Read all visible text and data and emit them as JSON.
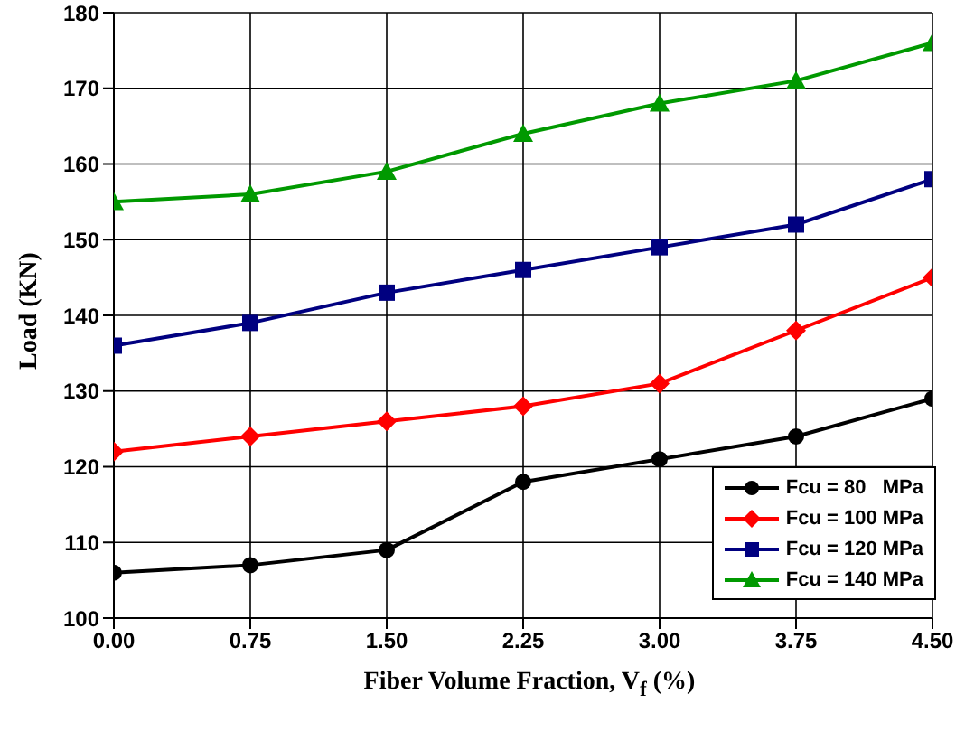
{
  "chart_data": {
    "type": "line",
    "xlabel": "Fiber Volume Fraction, V$_{f}$ (%)",
    "ylabel": "Load (KN)",
    "categories": [
      "0.00",
      "0.75",
      "1.50",
      "2.25",
      "3.00",
      "3.75",
      "4.50"
    ],
    "ylim": [
      100,
      180
    ],
    "yticks": [
      100,
      110,
      120,
      130,
      140,
      150,
      160,
      170,
      180
    ],
    "grid": true,
    "legend": "bottom right",
    "line_style": "solid",
    "series": [
      {
        "name": "Fcu = 80   MPa",
        "color": "#000000",
        "marker": "circle",
        "values": [
          106,
          107,
          109,
          118,
          121,
          124,
          129
        ]
      },
      {
        "name": "Fcu = 100 MPa",
        "color": "#ff0000",
        "marker": "diamond",
        "values": [
          122,
          124,
          126,
          128,
          131,
          138,
          145
        ]
      },
      {
        "name": "Fcu = 120 MPa",
        "color": "#000080",
        "marker": "square",
        "values": [
          136,
          139,
          143,
          146,
          149,
          152,
          158
        ]
      },
      {
        "name": "Fcu = 140 MPa",
        "color": "#009900",
        "marker": "triangle",
        "values": [
          155,
          156,
          159,
          164,
          168,
          171,
          176
        ]
      }
    ]
  }
}
